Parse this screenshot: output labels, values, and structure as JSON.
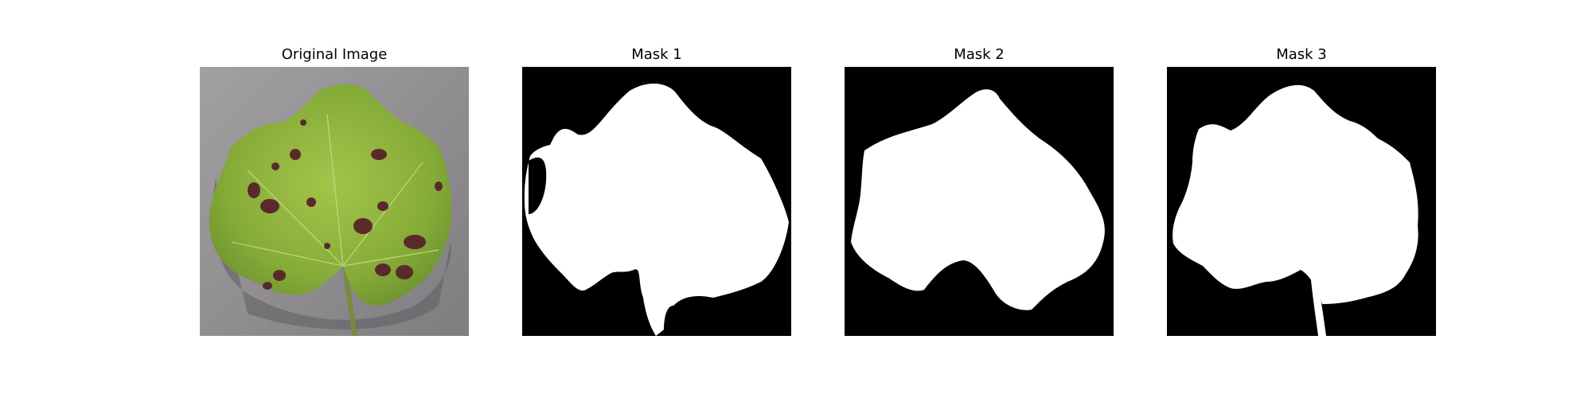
{
  "figure": {
    "panels": [
      {
        "title": "Original Image",
        "kind": "photo"
      },
      {
        "title": "Mask 1",
        "kind": "mask"
      },
      {
        "title": "Mask 2",
        "kind": "mask"
      },
      {
        "title": "Mask 3",
        "kind": "mask"
      }
    ]
  },
  "colors": {
    "mask_background": "#000000",
    "mask_foreground": "#ffffff",
    "photo_background": "#8f8d8f",
    "leaf_green": "#8db33a",
    "leaf_spot": "#5a2a2a"
  }
}
